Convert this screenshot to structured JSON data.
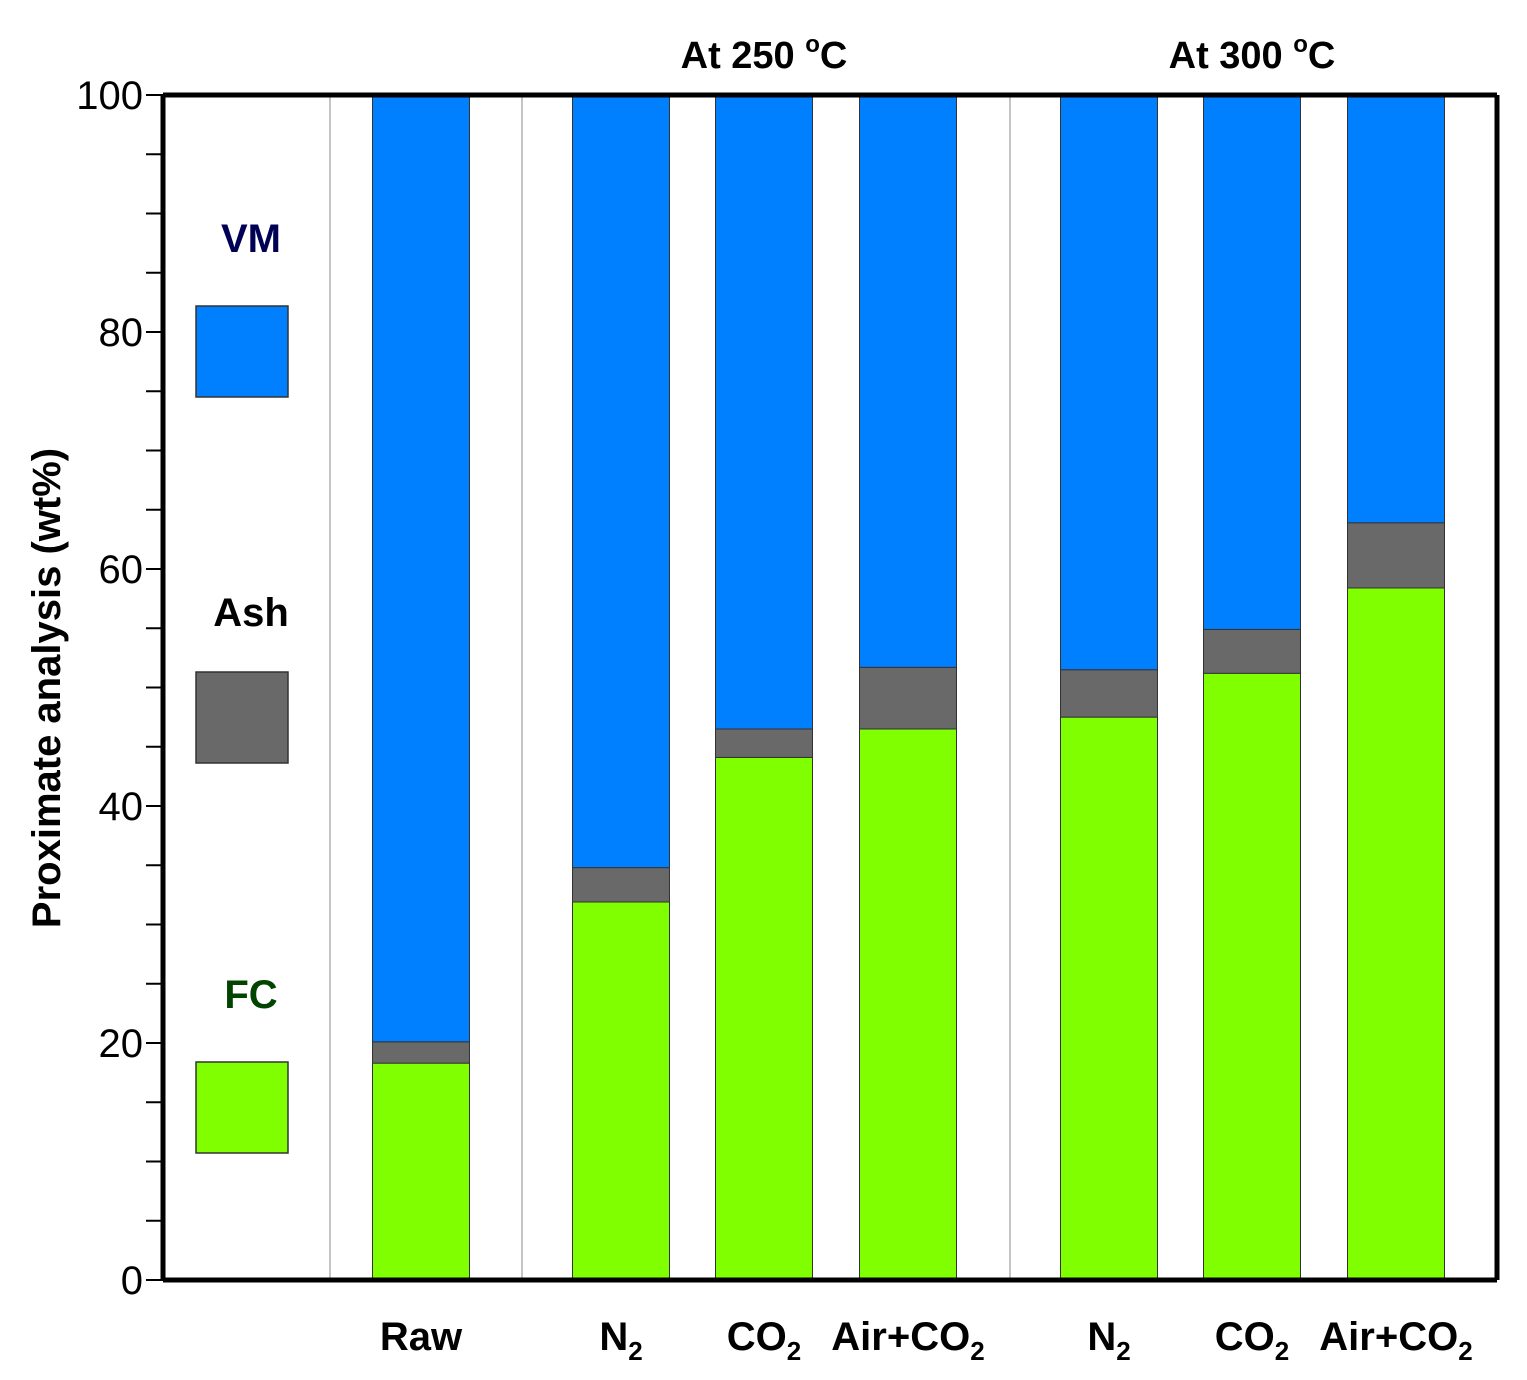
{
  "chart_data": {
    "type": "bar",
    "stacked": true,
    "ylabel": "Proximate analysis (wt%)",
    "xlabel": "",
    "ylim": [
      0,
      100
    ],
    "yticks": [
      0,
      20,
      40,
      60,
      80,
      100
    ],
    "categories": [
      {
        "base": "Raw",
        "sub": ""
      },
      {
        "base": "N",
        "sub": "2"
      },
      {
        "base": "CO",
        "sub": "2"
      },
      {
        "base": "Air+CO",
        "sub": "2"
      },
      {
        "base": "N",
        "sub": "2"
      },
      {
        "base": "CO",
        "sub": "2"
      },
      {
        "base": "Air+CO",
        "sub": "2"
      }
    ],
    "groups": [
      {
        "label": "At 250 ",
        "deg": "o",
        "unit": "C",
        "categories": [
          1,
          2,
          3
        ]
      },
      {
        "label": "At 300 ",
        "deg": "o",
        "unit": "C",
        "categories": [
          4,
          5,
          6
        ]
      }
    ],
    "series": [
      {
        "name": "FC",
        "color": "#7fff00",
        "values": [
          18.3,
          31.9,
          44.1,
          46.5,
          47.5,
          51.2,
          58.4
        ]
      },
      {
        "name": "Ash",
        "color": "#696969",
        "values": [
          1.8,
          2.9,
          2.4,
          5.2,
          4.0,
          3.7,
          5.5
        ]
      },
      {
        "name": "VM",
        "color": "#007fff",
        "values": [
          79.9,
          65.2,
          53.5,
          48.3,
          48.5,
          45.1,
          36.1
        ]
      }
    ],
    "legend": [
      {
        "name": "VM",
        "color": "#007fff",
        "text_color": "#000055"
      },
      {
        "name": "Ash",
        "color": "#696969",
        "text_color": "#000000"
      },
      {
        "name": "FC",
        "color": "#7fff00",
        "text_color": "#004400"
      }
    ],
    "legend_position": "left-inside"
  }
}
